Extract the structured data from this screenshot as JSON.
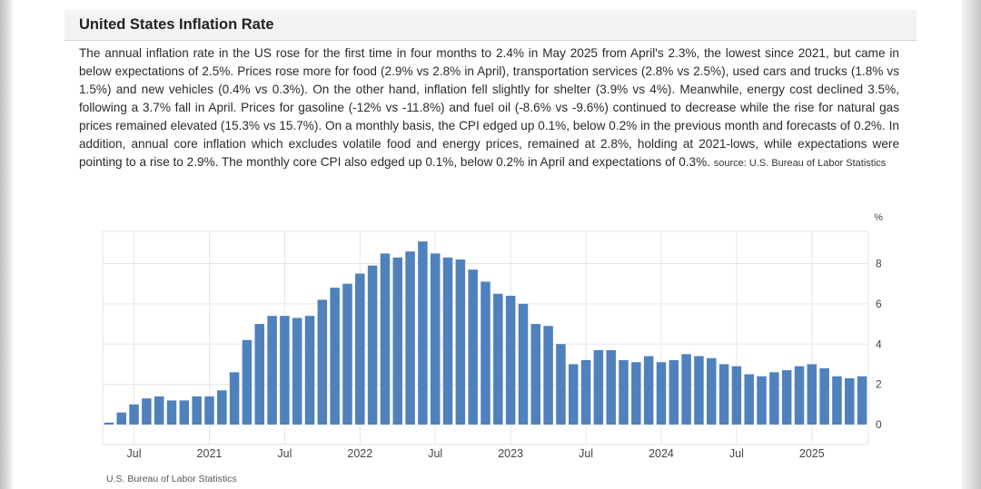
{
  "page": {
    "title": "United States Inflation Rate",
    "description": "The annual inflation rate in the US rose for the first time in four months to 2.4% in May 2025 from April's 2.3%, the lowest since 2021, but came in below expectations of 2.5%. Prices rose more for food (2.9% vs 2.8% in April), transportation services (2.8% vs 2.5%), used cars and trucks (1.8% vs 1.5%) and new vehicles (0.4% vs 0.3%). On the other hand, inflation fell slightly for shelter (3.9% vs 4%). Meanwhile, energy cost declined 3.5%, following a 3.7% fall in April. Prices for gasoline (-12% vs -11.8%) and fuel oil (-8.6% vs -9.6%) continued to decrease while the rise for natural gas prices remained elevated (15.3% vs 15.7%). On a monthly basis, the CPI edged up 0.1%, below 0.2% in the previous month and forecasts of 0.2%. In addition, annual core inflation which excludes volatile food and energy prices, remained at 2.8%, holding at 2021-lows, while expectations were pointing to a rise to 2.9%. The monthly core CPI also edged up 0.1%, below 0.2% in April and expectations of 0.3%.",
    "source_inline": "source: U.S. Bureau of Labor Statistics",
    "footer_source": "U.S. Bureau of Labor Statistics"
  },
  "colors": {
    "bar": "#4f81bd",
    "grid": "#e6e6e6",
    "axis_text": "#444444"
  },
  "chart_data": {
    "type": "bar",
    "unit": "%",
    "ylim": [
      0,
      9.6
    ],
    "yticks": [
      0,
      2,
      4,
      6,
      8
    ],
    "grid": true,
    "x_tick_labels": [
      {
        "label": "Jul",
        "index": 2
      },
      {
        "label": "2021",
        "index": 8
      },
      {
        "label": "Jul",
        "index": 14
      },
      {
        "label": "2022",
        "index": 20
      },
      {
        "label": "Jul",
        "index": 26
      },
      {
        "label": "2023",
        "index": 32
      },
      {
        "label": "Jul",
        "index": 38
      },
      {
        "label": "2024",
        "index": 44
      },
      {
        "label": "Jul",
        "index": 50
      },
      {
        "label": "2025",
        "index": 56
      }
    ],
    "categories": [
      "May 2020",
      "Jun 2020",
      "Jul 2020",
      "Aug 2020",
      "Sep 2020",
      "Oct 2020",
      "Nov 2020",
      "Dec 2020",
      "Jan 2021",
      "Feb 2021",
      "Mar 2021",
      "Apr 2021",
      "May 2021",
      "Jun 2021",
      "Jul 2021",
      "Aug 2021",
      "Sep 2021",
      "Oct 2021",
      "Nov 2021",
      "Dec 2021",
      "Jan 2022",
      "Feb 2022",
      "Mar 2022",
      "Apr 2022",
      "May 2022",
      "Jun 2022",
      "Jul 2022",
      "Aug 2022",
      "Sep 2022",
      "Oct 2022",
      "Nov 2022",
      "Dec 2022",
      "Jan 2023",
      "Feb 2023",
      "Mar 2023",
      "Apr 2023",
      "May 2023",
      "Jun 2023",
      "Jul 2023",
      "Aug 2023",
      "Sep 2023",
      "Oct 2023",
      "Nov 2023",
      "Dec 2023",
      "Jan 2024",
      "Feb 2024",
      "Mar 2024",
      "Apr 2024",
      "May 2024",
      "Jun 2024",
      "Jul 2024",
      "Aug 2024",
      "Sep 2024",
      "Oct 2024",
      "Nov 2024",
      "Dec 2024",
      "Jan 2025",
      "Feb 2025",
      "Mar 2025",
      "Apr 2025",
      "May 2025"
    ],
    "values": [
      0.1,
      0.6,
      1.0,
      1.3,
      1.4,
      1.2,
      1.2,
      1.4,
      1.4,
      1.7,
      2.6,
      4.2,
      5.0,
      5.4,
      5.4,
      5.3,
      5.4,
      6.2,
      6.8,
      7.0,
      7.5,
      7.9,
      8.5,
      8.3,
      8.6,
      9.1,
      8.5,
      8.3,
      8.2,
      7.7,
      7.1,
      6.5,
      6.4,
      6.0,
      5.0,
      4.9,
      4.0,
      3.0,
      3.2,
      3.7,
      3.7,
      3.2,
      3.1,
      3.4,
      3.1,
      3.2,
      3.5,
      3.4,
      3.3,
      3.0,
      2.9,
      2.5,
      2.4,
      2.6,
      2.7,
      2.9,
      3.0,
      2.8,
      2.4,
      2.3,
      2.4
    ]
  }
}
